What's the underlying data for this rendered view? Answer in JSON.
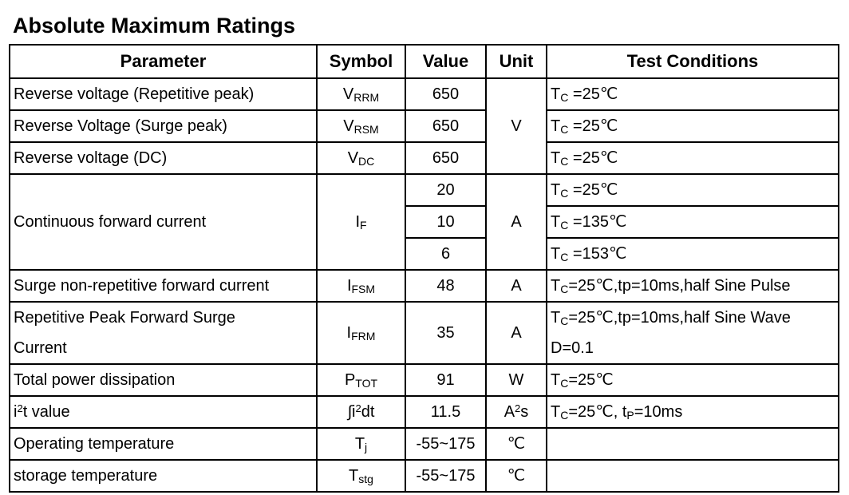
{
  "title": "Absolute Maximum Ratings",
  "headers": {
    "parameter": "Parameter",
    "symbol": "Symbol",
    "value": "Value",
    "unit": "Unit",
    "conditions": "Test Conditions"
  },
  "rows": [
    {
      "parameter": "Reverse voltage (Repetitive peak)",
      "sym_main": "V",
      "sym_sub": "RRM",
      "value": "650",
      "cond_t": "T",
      "cond_sub": "C",
      "cond_rest": " =25℃"
    },
    {
      "parameter": "Reverse Voltage (Surge peak)",
      "sym_main": "V",
      "sym_sub": "RSM",
      "value": "650",
      "cond_t": "T",
      "cond_sub": "C",
      "cond_rest": " =25℃"
    },
    {
      "parameter": "Reverse voltage (DC)",
      "sym_main": "V",
      "sym_sub": "DC",
      "value": "650",
      "cond_t": "T",
      "cond_sub": "C",
      "cond_rest": " =25℃"
    },
    {
      "parameter": "Continuous forward current",
      "sym_main": "I",
      "sym_sub": "F",
      "values": [
        "20",
        "10",
        "6"
      ],
      "conds": [
        {
          "t": "T",
          "sub": "C",
          "rest": " =25℃"
        },
        {
          "t": "T",
          "sub": "C",
          "rest": " =135℃"
        },
        {
          "t": "T",
          "sub": "C",
          "rest": " =153℃"
        }
      ]
    },
    {
      "parameter": "Surge non-repetitive forward current",
      "sym_main": "I",
      "sym_sub": "FSM",
      "value": "48",
      "unit": "A",
      "cond_t": "T",
      "cond_sub": "C",
      "cond_rest": "=25℃,tp=10ms,half Sine Pulse"
    },
    {
      "parameter_line1": "Repetitive Peak Forward Surge",
      "parameter_line2": "Current",
      "sym_main": "I",
      "sym_sub": "FRM",
      "value": "35",
      "unit": "A",
      "cond_t": "T",
      "cond_sub": "C",
      "cond_rest": "=25℃,tp=10ms,half Sine Wave",
      "cond_line2": "D=0.1"
    },
    {
      "parameter": "Total power dissipation",
      "sym_main": "P",
      "sym_sub": "TOT",
      "value": "91",
      "unit": "W",
      "cond_t": "T",
      "cond_sub": "C",
      "cond_rest": "=25℃"
    },
    {
      "param_pre": "i",
      "param_sup": "2",
      "param_post": "t value",
      "sym_pre": "∫i",
      "sym_sup": "2",
      "sym_post": "dt",
      "value": "11.5",
      "unit_pre": "A",
      "unit_sup": "2",
      "unit_post": "s",
      "cond_t": "T",
      "cond_sub": "C",
      "cond_rest": "=25℃, t",
      "cond_sub2": "P",
      "cond_rest2": "=10ms"
    },
    {
      "parameter": "Operating temperature",
      "sym_main": "T",
      "sym_sub": "j",
      "value": "-55~175",
      "unit": "℃"
    },
    {
      "parameter": "storage temperature",
      "sym_main": "T",
      "sym_sub": "stg",
      "value": "-55~175",
      "unit": "℃"
    }
  ],
  "units": {
    "voltage": "V",
    "current": "A"
  }
}
